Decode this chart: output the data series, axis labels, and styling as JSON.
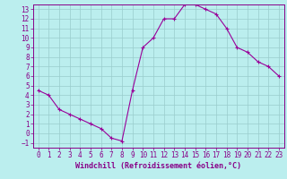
{
  "x": [
    0,
    1,
    2,
    3,
    4,
    5,
    6,
    7,
    8,
    9,
    10,
    11,
    12,
    13,
    14,
    15,
    16,
    17,
    18,
    19,
    20,
    21,
    22,
    23
  ],
  "y": [
    4.5,
    4.0,
    2.5,
    2.0,
    1.5,
    1.0,
    0.5,
    -0.5,
    -0.8,
    4.5,
    9.0,
    10.0,
    12.0,
    12.0,
    13.5,
    13.5,
    13.0,
    12.5,
    11.0,
    9.0,
    8.5,
    7.5,
    7.0,
    6.0
  ],
  "line_color": "#990099",
  "marker": "+",
  "background_color": "#bbeeee",
  "grid_color": "#99cccc",
  "xlabel": "Windchill (Refroidissement éolien,°C)",
  "ylabel": "",
  "xlim": [
    -0.5,
    23.5
  ],
  "ylim": [
    -1.5,
    13.5
  ],
  "yticks": [
    -1,
    0,
    1,
    2,
    3,
    4,
    5,
    6,
    7,
    8,
    9,
    10,
    11,
    12,
    13
  ],
  "xticks": [
    0,
    1,
    2,
    3,
    4,
    5,
    6,
    7,
    8,
    9,
    10,
    11,
    12,
    13,
    14,
    15,
    16,
    17,
    18,
    19,
    20,
    21,
    22,
    23
  ],
  "tick_color": "#880088",
  "label_color": "#880088",
  "axes_color": "#880088",
  "label_fontsize": 6.0,
  "tick_fontsize": 5.5
}
